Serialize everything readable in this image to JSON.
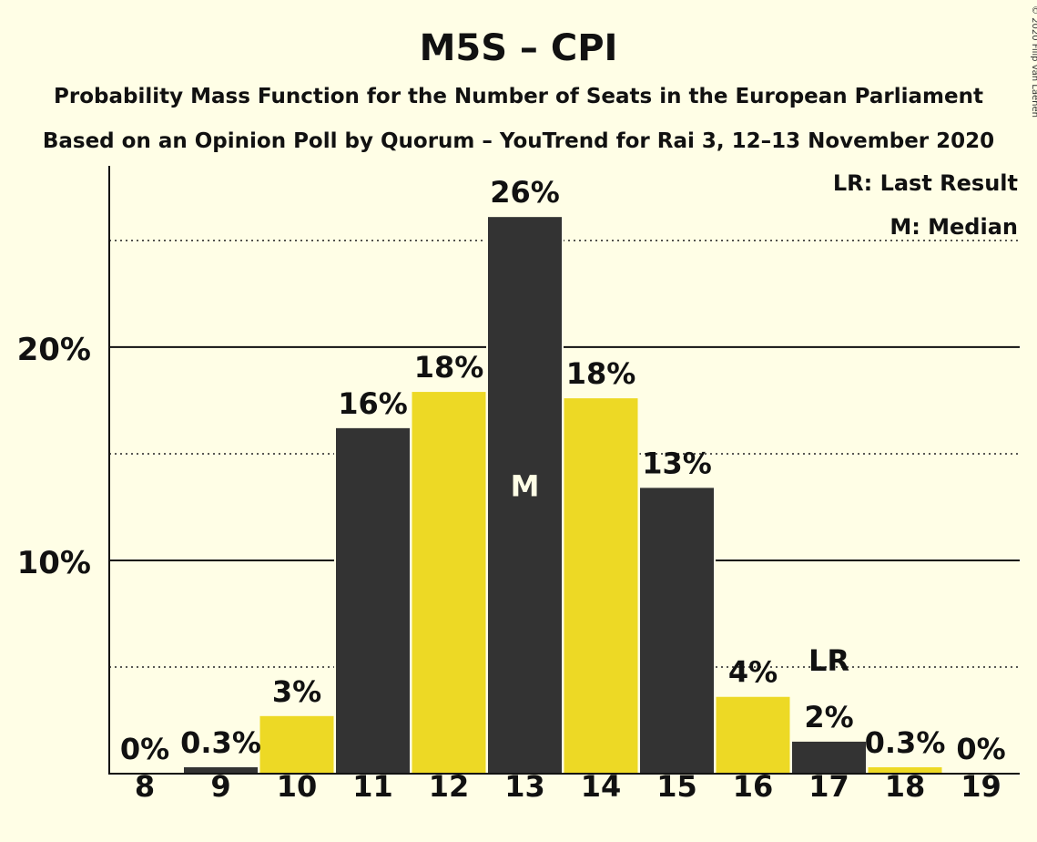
{
  "chart_data": {
    "type": "bar",
    "title": "M5S – CPI",
    "subtitle_1": "Probability Mass Function for the Number of Seats in the European Parliament",
    "subtitle_2": "Based on an Opinion Poll by Quorum – YouTrend for Rai 3, 12–13 November 2020",
    "copyright": "© 2020 Filip van Laenen",
    "legend": [
      "LR: Last Result",
      "M: Median"
    ],
    "legend_position": "top-right",
    "categories": [
      "8",
      "9",
      "10",
      "11",
      "12",
      "13",
      "14",
      "15",
      "16",
      "17",
      "18",
      "19"
    ],
    "values": [
      0,
      0.3,
      2.7,
      16.2,
      17.9,
      26.1,
      17.6,
      13.4,
      3.6,
      1.5,
      0.3,
      0
    ],
    "data_labels": [
      "0%",
      "0.3%",
      "3%",
      "16%",
      "18%",
      "26%",
      "18%",
      "13%",
      "4%",
      "2%",
      "0.3%",
      "0%"
    ],
    "bar_colors": [
      "#333333",
      "#333333",
      "#EDD925",
      "#333333",
      "#EDD925",
      "#333333",
      "#EDD925",
      "#333333",
      "#EDD925",
      "#333333",
      "#EDD925",
      "#333333"
    ],
    "y_ticks": [
      {
        "value": 10,
        "label": "10%"
      },
      {
        "value": 20,
        "label": "20%"
      }
    ],
    "y_dotted_lines": [
      5,
      15,
      25
    ],
    "ylim": [
      0,
      28.5
    ],
    "median": {
      "category": "13",
      "label": "M"
    },
    "last_result": {
      "category": "17",
      "label": "LR"
    },
    "colors": {
      "background": "#FFFEE6",
      "dark_bar": "#333333",
      "yellow_bar": "#EDD925",
      "text": "#111111"
    }
  }
}
